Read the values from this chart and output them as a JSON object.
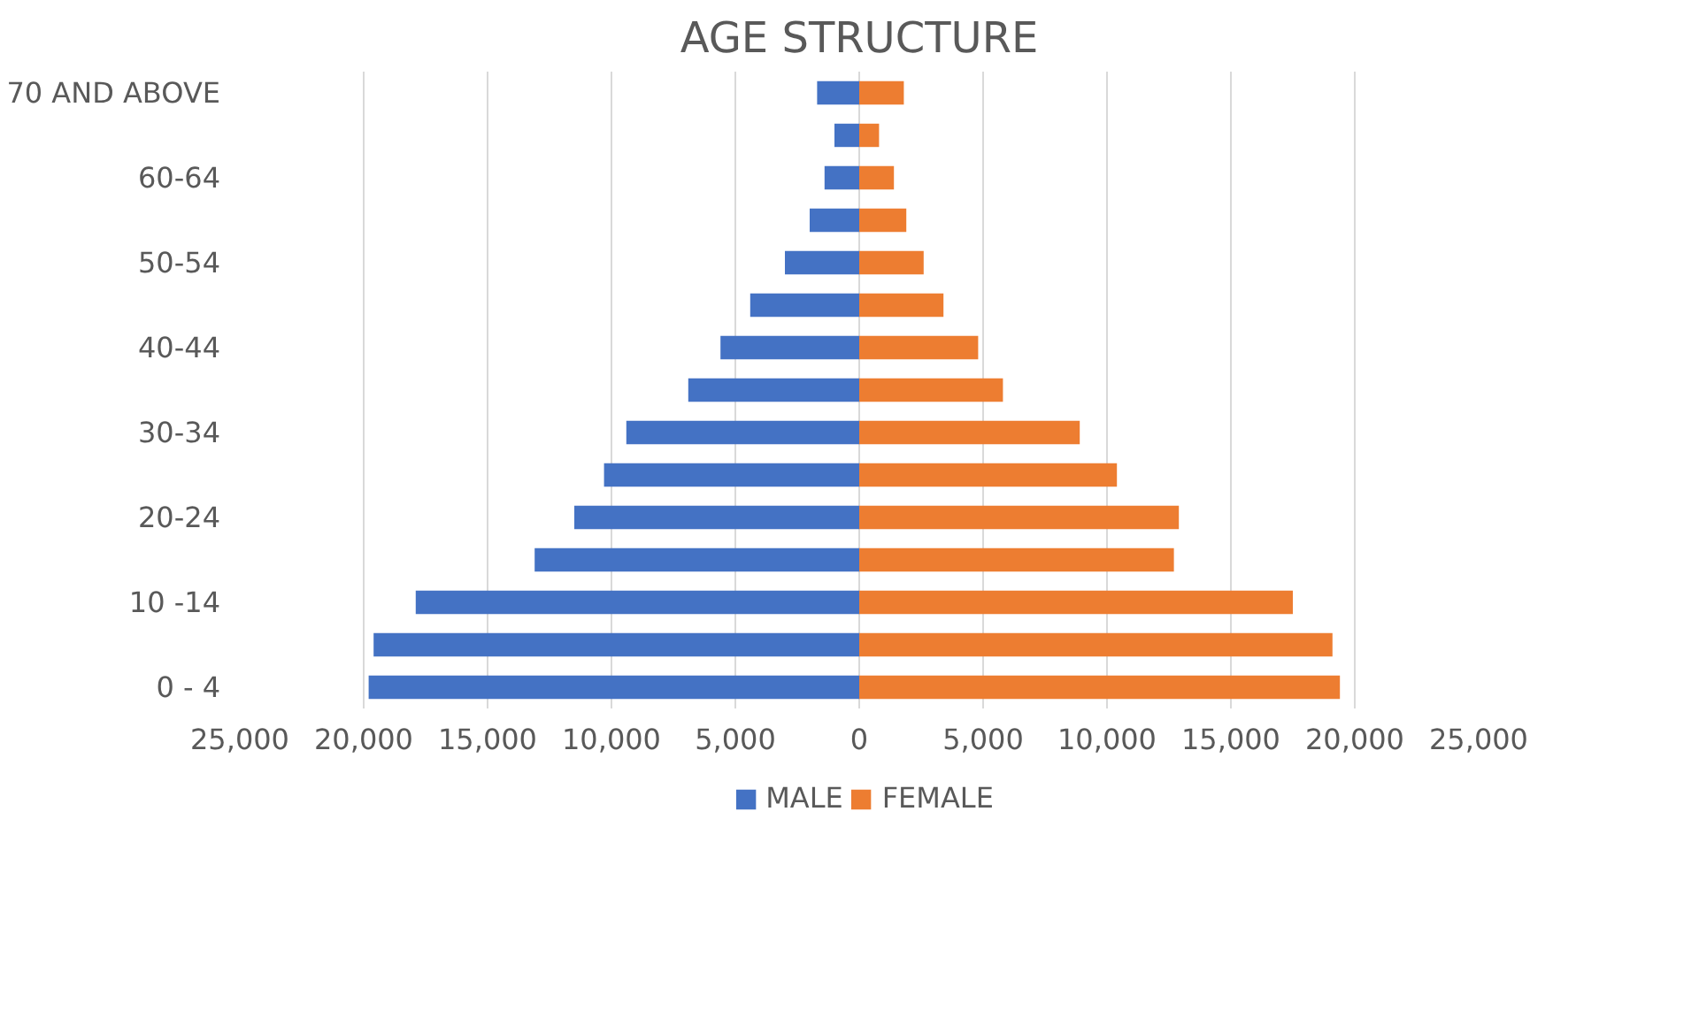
{
  "chart_data": {
    "type": "bar",
    "orientation": "horizontal",
    "title": "AGE STRUCTURE",
    "categories": [
      "70 AND ABOVE",
      null,
      "60-64",
      null,
      "50-54",
      null,
      "40-44",
      null,
      "30-34",
      null,
      "20-24",
      null,
      "10 -14",
      null,
      "0 - 4"
    ],
    "series": [
      {
        "name": "MALE",
        "color": "#4472c4",
        "values": [
          -1700,
          -1000,
          -1400,
          -2000,
          -3000,
          -4400,
          -5600,
          -6900,
          -9400,
          -10300,
          -11500,
          -13100,
          -17900,
          -19600,
          -19800
        ]
      },
      {
        "name": "FEMALE",
        "color": "#ed7d31",
        "values": [
          1800,
          800,
          1400,
          1900,
          2600,
          3400,
          4800,
          5800,
          8900,
          10400,
          12900,
          12700,
          17500,
          19100,
          19400
        ]
      }
    ],
    "xlim": [
      -25000,
      25000
    ],
    "xticks": [
      {
        "value": -25000,
        "label": "25,000"
      },
      {
        "value": -20000,
        "label": "20,000"
      },
      {
        "value": -15000,
        "label": "15,000"
      },
      {
        "value": -10000,
        "label": "10,000"
      },
      {
        "value": -5000,
        "label": "5,000"
      },
      0,
      {
        "value": 5000,
        "label": "5,000"
      },
      {
        "value": 10000,
        "label": "10,000"
      },
      {
        "value": 15000,
        "label": "15,000"
      },
      {
        "value": 20000,
        "label": "20,000"
      },
      {
        "value": 25000,
        "label": "25,000"
      }
    ],
    "grid": "x",
    "legend": "bottom",
    "stacked": true
  }
}
